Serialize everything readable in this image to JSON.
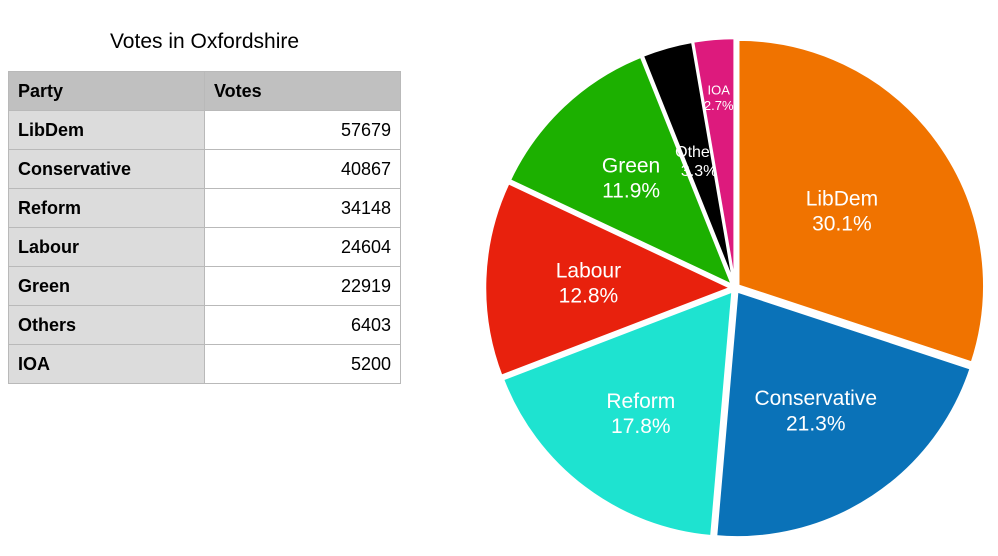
{
  "table": {
    "title": "Votes in Oxfordshire",
    "headers": [
      "Party",
      "Votes"
    ],
    "rows": [
      {
        "party": "LibDem",
        "votes": "57679"
      },
      {
        "party": "Conservative",
        "votes": "40867"
      },
      {
        "party": "Reform",
        "votes": "34148"
      },
      {
        "party": "Labour",
        "votes": "24604"
      },
      {
        "party": "Green",
        "votes": "22919"
      },
      {
        "party": "Others",
        "votes": "6403"
      },
      {
        "party": "IOA",
        "votes": "5200"
      }
    ]
  },
  "chart_data": {
    "type": "pie",
    "title": "",
    "slices": [
      {
        "label": "LibDem",
        "value": 57679,
        "percent": "30.1%",
        "color": "#f07300"
      },
      {
        "label": "Conservative",
        "value": 40867,
        "percent": "21.3%",
        "color": "#0a72b8"
      },
      {
        "label": "Reform",
        "value": 34148,
        "percent": "17.8%",
        "color": "#1ee3d0"
      },
      {
        "label": "Labour",
        "value": 24604,
        "percent": "12.8%",
        "color": "#e8210d"
      },
      {
        "label": "Green",
        "value": 22919,
        "percent": "11.9%",
        "color": "#1cb000"
      },
      {
        "label": "Others",
        "value": 6403,
        "percent": "3.3%",
        "color": "#000000"
      },
      {
        "label": "IOA",
        "value": 5200,
        "percent": "2.7%",
        "color": "#dd1a7d"
      }
    ]
  }
}
